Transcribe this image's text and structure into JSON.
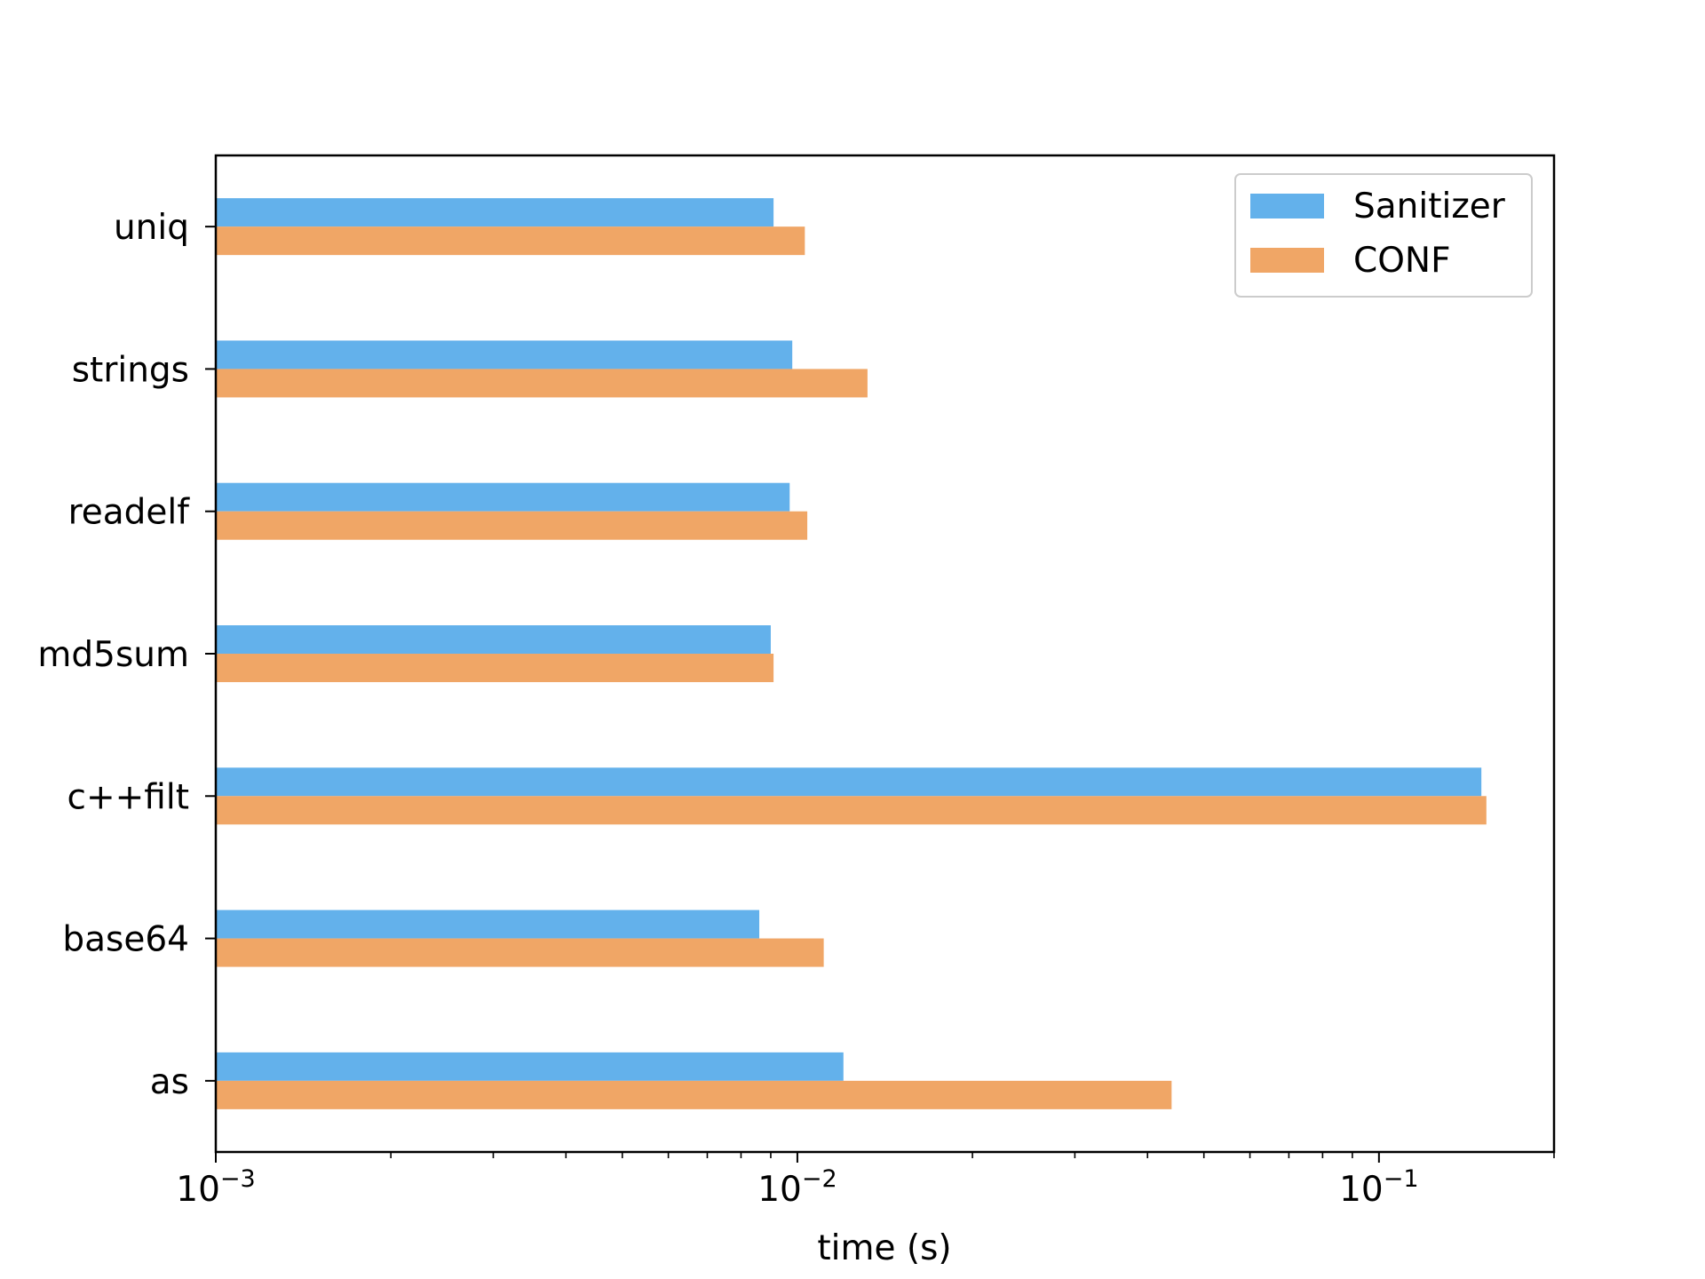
{
  "chart_data": {
    "type": "bar",
    "orientation": "horizontal",
    "title": "",
    "xlabel": "time (s)",
    "ylabel": "",
    "xscale": "log",
    "xlim": [
      0.001,
      0.2
    ],
    "x_ticks": [
      {
        "value": 0.001,
        "base": "10",
        "exp": "−3"
      },
      {
        "value": 0.01,
        "base": "10",
        "exp": "−2"
      },
      {
        "value": 0.1,
        "base": "10",
        "exp": "−1"
      }
    ],
    "categories": [
      "uniq",
      "strings",
      "readelf",
      "md5sum",
      "c++filt",
      "base64",
      "as"
    ],
    "series": [
      {
        "name": "Sanitizer",
        "color": "#63b1eb",
        "values": [
          0.0091,
          0.0098,
          0.0097,
          0.009,
          0.15,
          0.0086,
          0.012
        ]
      },
      {
        "name": "CONF",
        "color": "#f0a666",
        "values": [
          0.0103,
          0.0132,
          0.0104,
          0.0091,
          0.153,
          0.0111,
          0.044
        ]
      }
    ],
    "grid": false,
    "legend": "top-right"
  }
}
